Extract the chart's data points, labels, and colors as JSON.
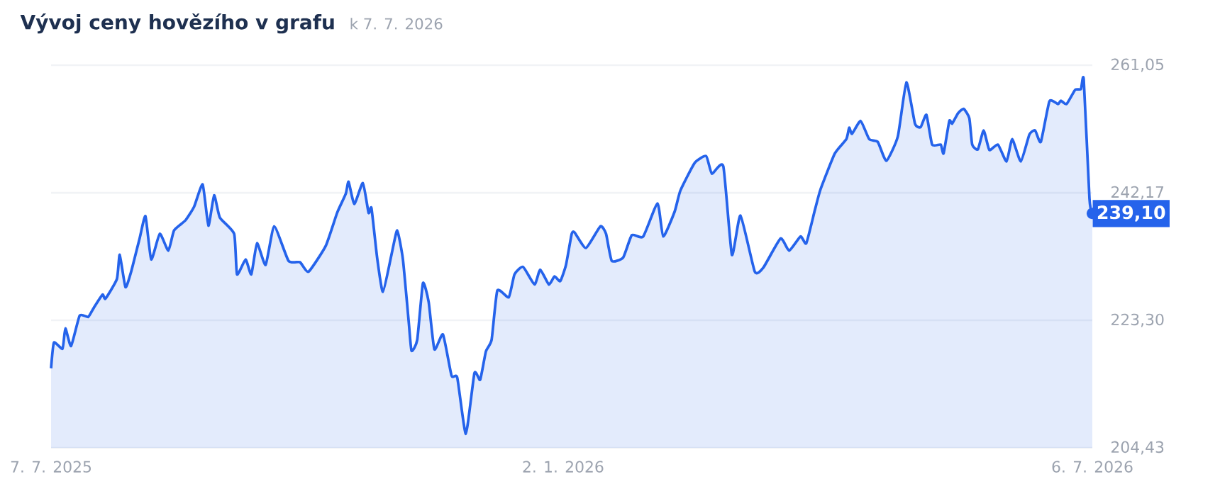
{
  "chart_data": {
    "type": "area",
    "title": "Vývoj ceny hovězího v grafu",
    "subtitle": "k 7. 7. 2026",
    "x": [
      "2025-07-07",
      "2025-07-08",
      "2025-07-11",
      "2025-07-12",
      "2025-07-14",
      "2025-07-17",
      "2025-07-20",
      "2025-07-22",
      "2025-07-25",
      "2025-07-26",
      "2025-07-30",
      "2025-07-31",
      "2025-08-02",
      "2025-08-04",
      "2025-08-07",
      "2025-08-09",
      "2025-08-11",
      "2025-08-14",
      "2025-08-17",
      "2025-08-19",
      "2025-08-23",
      "2025-08-26",
      "2025-08-29",
      "2025-08-31",
      "2025-09-02",
      "2025-09-04",
      "2025-09-09",
      "2025-09-10",
      "2025-09-13",
      "2025-09-15",
      "2025-09-17",
      "2025-09-20",
      "2025-09-23",
      "2025-09-28",
      "2025-10-02",
      "2025-10-05",
      "2025-10-11",
      "2025-10-15",
      "2025-10-18",
      "2025-10-19",
      "2025-10-21",
      "2025-10-24",
      "2025-10-26",
      "2025-10-27",
      "2025-10-29",
      "2025-10-31",
      "2025-11-03",
      "2025-11-05",
      "2025-11-07",
      "2025-11-09",
      "2025-11-10",
      "2025-11-12",
      "2025-11-14",
      "2025-11-16",
      "2025-11-18",
      "2025-11-21",
      "2025-11-24",
      "2025-11-26",
      "2025-11-29",
      "2025-12-02",
      "2025-12-04",
      "2025-12-06",
      "2025-12-08",
      "2025-12-10",
      "2025-12-14",
      "2025-12-16",
      "2025-12-19",
      "2025-12-23",
      "2025-12-25",
      "2025-12-28",
      "2025-12-30",
      "2026-01-01",
      "2026-01-03",
      "2026-01-05",
      "2026-01-06",
      "2026-01-10",
      "2026-01-15",
      "2026-01-17",
      "2026-01-19",
      "2026-01-23",
      "2026-01-26",
      "2026-01-30",
      "2026-02-04",
      "2026-02-06",
      "2026-02-10",
      "2026-02-12",
      "2026-02-17",
      "2026-02-21",
      "2026-02-23",
      "2026-02-27",
      "2026-03-02",
      "2026-03-05",
      "2026-03-10",
      "2026-03-13",
      "2026-03-19",
      "2026-03-22",
      "2026-03-26",
      "2026-03-28",
      "2026-03-31",
      "2026-04-02",
      "2026-04-07",
      "2026-04-11",
      "2026-04-12",
      "2026-04-13",
      "2026-04-16",
      "2026-04-19",
      "2026-04-22",
      "2026-04-25",
      "2026-04-29",
      "2026-05-02",
      "2026-05-05",
      "2026-05-07",
      "2026-05-09",
      "2026-05-11",
      "2026-05-14",
      "2026-05-15",
      "2026-05-17",
      "2026-05-18",
      "2026-05-20",
      "2026-05-22",
      "2026-05-24",
      "2026-05-25",
      "2026-05-27",
      "2026-05-29",
      "2026-05-31",
      "2026-06-03",
      "2026-06-06",
      "2026-06-08",
      "2026-06-11",
      "2026-06-14",
      "2026-06-16",
      "2026-06-18",
      "2026-06-21",
      "2026-06-24",
      "2026-06-25",
      "2026-06-27",
      "2026-06-30",
      "2026-07-02",
      "2026-07-03",
      "2026-07-05",
      "2026-07-06"
    ],
    "values": [
      216.2,
      220.0,
      219.1,
      222.1,
      219.5,
      224.0,
      223.8,
      225.2,
      227.1,
      226.5,
      229.4,
      233.0,
      228.2,
      230.5,
      235.5,
      238.7,
      232.3,
      236.1,
      233.6,
      236.6,
      238.1,
      240.1,
      243.4,
      237.3,
      241.8,
      238.5,
      236.1,
      230.1,
      232.3,
      230.1,
      234.7,
      231.5,
      237.2,
      232.1,
      231.9,
      230.5,
      234.3,
      239.2,
      242.0,
      243.8,
      240.5,
      243.6,
      239.2,
      239.9,
      232.5,
      227.5,
      233.0,
      236.6,
      232.3,
      223.2,
      218.8,
      220.4,
      228.8,
      226.0,
      219.0,
      221.2,
      215.1,
      214.8,
      206.5,
      215.5,
      214.5,
      218.7,
      220.4,
      227.7,
      226.7,
      230.1,
      231.2,
      228.6,
      230.8,
      228.6,
      229.8,
      229.1,
      231.5,
      236.1,
      236.3,
      234.0,
      237.2,
      236.1,
      232.1,
      232.6,
      235.9,
      235.7,
      240.6,
      235.7,
      239.4,
      242.5,
      246.6,
      247.6,
      245.0,
      246.1,
      233.0,
      238.8,
      230.5,
      231.1,
      235.4,
      233.6,
      235.7,
      234.7,
      239.6,
      242.7,
      248.0,
      250.1,
      251.8,
      250.9,
      252.8,
      250.1,
      249.7,
      246.9,
      250.5,
      258.5,
      252.4,
      251.9,
      253.7,
      249.3,
      249.3,
      248.0,
      252.8,
      252.4,
      253.9,
      254.6,
      253.2,
      249.3,
      248.6,
      251.4,
      248.5,
      249.3,
      246.8,
      250.1,
      246.8,
      250.8,
      251.4,
      249.7,
      255.7,
      255.3,
      255.8,
      255.3,
      257.4,
      257.5,
      258.9,
      241.3,
      239.1
    ],
    "color": "#2563eb",
    "xlim": [
      "2025-07-07",
      "2026-07-06"
    ],
    "xticks": [
      {
        "value": "2025-07-07",
        "label": "7. 7. 2025"
      },
      {
        "value": "2026-01-02",
        "label": "2. 1. 2026"
      },
      {
        "value": "2026-07-06",
        "label": "6. 7. 2026"
      }
    ],
    "ylim": [
      204.43,
      261.05
    ],
    "yticks": [
      {
        "value": 204.43,
        "label": "204,43"
      },
      {
        "value": 223.3,
        "label": "223,30"
      },
      {
        "value": 242.17,
        "label": "242,17"
      },
      {
        "value": 261.05,
        "label": "261,05"
      }
    ],
    "grid": "y",
    "annotations": [
      {
        "text": "239,10",
        "x": "2026-07-06",
        "y": 239.1
      }
    ]
  }
}
